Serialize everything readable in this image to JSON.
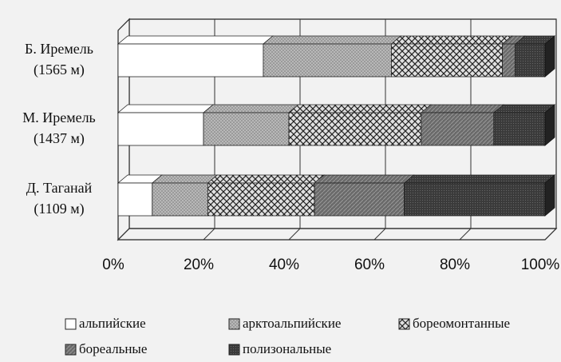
{
  "chart_data": {
    "type": "stacked_bar_3d",
    "categories": [
      "Б. Иремель\n(1565 м)",
      "М. Иремель\n(1437 м)",
      "Д. Таганай\n(1109 м)"
    ],
    "series": [
      {
        "name": "альпийские",
        "color": "#ffffff",
        "values": [
          34,
          20,
          8
        ]
      },
      {
        "name": "арктоальпийские",
        "color": "#b8b8b8",
        "values": [
          30,
          20,
          13
        ]
      },
      {
        "name": "бореомонтанные",
        "color": "#e0e0e0",
        "values": [
          26,
          31,
          25
        ]
      },
      {
        "name": "бореальные",
        "color": "#6a6a6a",
        "values": [
          3,
          17,
          21
        ]
      },
      {
        "name": "полизональные",
        "color": "#3a3a3a",
        "values": [
          7,
          12,
          33
        ]
      }
    ],
    "xlim": [
      0,
      100
    ],
    "xticks": [
      {
        "value": 0,
        "label": "0%"
      },
      {
        "value": 20,
        "label": "20%"
      },
      {
        "value": 40,
        "label": "40%"
      },
      {
        "value": 60,
        "label": "60%"
      },
      {
        "value": 80,
        "label": "80%"
      },
      {
        "value": 100,
        "label": "100%"
      }
    ],
    "grid": true
  }
}
